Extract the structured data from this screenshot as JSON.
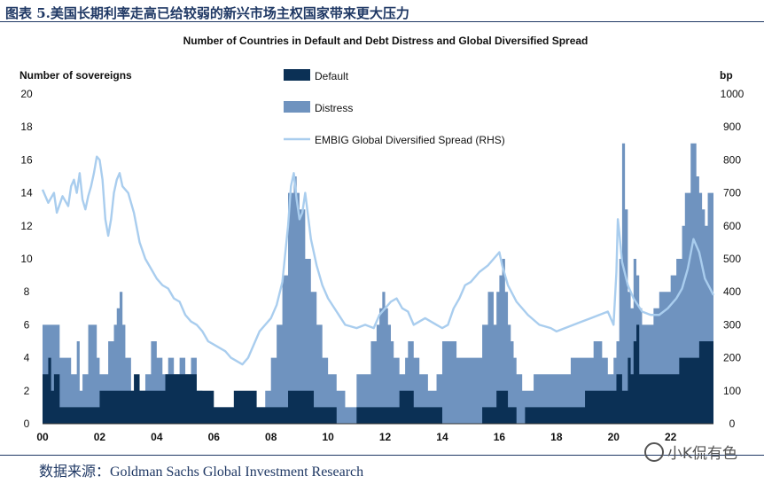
{
  "caption": "图表 5.美国长期利率走高已给较弱的新兴市场主权国家带来更大压力",
  "source": "数据来源：Goldman Sachs Global Investment Research",
  "watermark": "小K侃有色",
  "colors": {
    "default": "#0b3055",
    "distress": "#6f93bf",
    "spread": "#a9cdee",
    "frame": "#1f3864"
  },
  "chart_data": {
    "type": "bar",
    "title": "Number of Countries in Default and Debt Distress and Global Diversified Spread",
    "ylabel": "Number of sovereigns",
    "y2label": "bp",
    "ylim": [
      0,
      20
    ],
    "y2lim": [
      0,
      1000
    ],
    "yticks": [
      "0",
      "2",
      "4",
      "6",
      "8",
      "10",
      "12",
      "14",
      "16",
      "18",
      "20"
    ],
    "y2ticks": [
      "0",
      "100",
      "200",
      "300",
      "400",
      "500",
      "600",
      "700",
      "800",
      "900",
      "1000"
    ],
    "xlim": [
      2000,
      2023.5
    ],
    "xticks": [
      {
        "label": "00",
        "x": 2000
      },
      {
        "label": "02",
        "x": 2002
      },
      {
        "label": "04",
        "x": 2004
      },
      {
        "label": "06",
        "x": 2006
      },
      {
        "label": "08",
        "x": 2008
      },
      {
        "label": "10",
        "x": 2010
      },
      {
        "label": "12",
        "x": 2012
      },
      {
        "label": "14",
        "x": 2014
      },
      {
        "label": "16",
        "x": 2016
      },
      {
        "label": "18",
        "x": 2018
      },
      {
        "label": "20",
        "x": 2020
      },
      {
        "label": "22",
        "x": 2022
      }
    ],
    "legend": [
      "Default",
      "Distress",
      "EMBIG Global Diversified Spread (RHS)"
    ],
    "series": [
      {
        "name": "Default",
        "type": "step",
        "x": [
          2000.0,
          2000.2,
          2000.3,
          2000.4,
          2000.6,
          2001.5,
          2001.9,
          2002.0,
          2003.0,
          2003.2,
          2003.4,
          2004.2,
          2004.3,
          2005.3,
          2005.4,
          2005.5,
          2006.0,
          2006.5,
          2006.7,
          2007.5,
          2008.0,
          2008.6,
          2009.2,
          2009.5,
          2010.3,
          2011.0,
          2011.5,
          2011.8,
          2012.0,
          2012.5,
          2012.8,
          2013.0,
          2013.2,
          2014.0,
          2014.2,
          2015.0,
          2015.4,
          2015.7,
          2015.9,
          2016.2,
          2016.3,
          2016.6,
          2016.9,
          2017.2,
          2018.0,
          2019.0,
          2019.8,
          2020.1,
          2020.3,
          2020.5,
          2020.6,
          2020.7,
          2020.8,
          2020.9,
          2021.0,
          2021.3,
          2022.3,
          2022.5,
          2023.0,
          2023.5
        ],
        "values": [
          3,
          4,
          2,
          3,
          1,
          1,
          1,
          2,
          2,
          3,
          2,
          2,
          3,
          3,
          2,
          2,
          1,
          1,
          2,
          1,
          1,
          2,
          2,
          1,
          0,
          1,
          1,
          1,
          1,
          2,
          2,
          1,
          1,
          0,
          0,
          0,
          1,
          1,
          2,
          2,
          1,
          0,
          1,
          1,
          1,
          2,
          2,
          3,
          2,
          4,
          3,
          5,
          6,
          3,
          3,
          3,
          4,
          4,
          5,
          5
        ]
      },
      {
        "name": "Distress",
        "type": "step",
        "x": [
          2000.0,
          2000.6,
          2001.0,
          2001.2,
          2001.3,
          2001.4,
          2001.6,
          2001.9,
          2002.0,
          2002.3,
          2002.5,
          2002.6,
          2002.7,
          2002.8,
          2002.9,
          2003.1,
          2003.4,
          2003.6,
          2003.8,
          2004.0,
          2004.2,
          2004.4,
          2004.6,
          2004.8,
          2005.0,
          2005.2,
          2005.4,
          2005.6,
          2005.8,
          2006.0,
          2006.4,
          2006.6,
          2007.0,
          2007.5,
          2007.8,
          2008.0,
          2008.2,
          2008.4,
          2008.6,
          2008.8,
          2008.9,
          2009.0,
          2009.2,
          2009.4,
          2009.6,
          2009.8,
          2010.0,
          2010.3,
          2010.6,
          2011.0,
          2011.5,
          2011.7,
          2011.8,
          2011.9,
          2012.0,
          2012.1,
          2012.2,
          2012.3,
          2012.5,
          2012.7,
          2012.8,
          2013.0,
          2013.2,
          2013.5,
          2013.6,
          2013.8,
          2014.0,
          2014.3,
          2014.5,
          2015.0,
          2015.4,
          2015.6,
          2015.8,
          2015.9,
          2016.0,
          2016.1,
          2016.2,
          2016.3,
          2016.4,
          2016.5,
          2016.6,
          2016.8,
          2017.2,
          2017.5,
          2018.0,
          2018.5,
          2019.0,
          2019.3,
          2019.6,
          2019.8,
          2020.0,
          2020.1,
          2020.2,
          2020.3,
          2020.4,
          2020.5,
          2020.6,
          2020.7,
          2020.8,
          2020.9,
          2021.0,
          2021.2,
          2021.4,
          2021.6,
          2021.8,
          2022.0,
          2022.2,
          2022.4,
          2022.5,
          2022.7,
          2022.9,
          2023.0,
          2023.1,
          2023.2,
          2023.3,
          2023.5
        ],
        "values": [
          6,
          4,
          3,
          5,
          2,
          3,
          6,
          4,
          3,
          5,
          6,
          7,
          8,
          6,
          4,
          2,
          2,
          3,
          5,
          4,
          3,
          4,
          3,
          4,
          3,
          4,
          2,
          1,
          1,
          1,
          1,
          1,
          1,
          1,
          2,
          4,
          6,
          9,
          14,
          15,
          14,
          13,
          10,
          8,
          6,
          4,
          3,
          2,
          1,
          3,
          5,
          6,
          7,
          8,
          7,
          6,
          5,
          4,
          3,
          4,
          5,
          4,
          3,
          2,
          2,
          3,
          5,
          5,
          4,
          4,
          6,
          8,
          6,
          8,
          9,
          10,
          8,
          6,
          5,
          4,
          3,
          2,
          3,
          3,
          3,
          4,
          4,
          5,
          4,
          3,
          4,
          5,
          10,
          17,
          13,
          8,
          7,
          10,
          9,
          7,
          6,
          6,
          7,
          8,
          8,
          9,
          10,
          12,
          14,
          17,
          15,
          14,
          13,
          12,
          14,
          14
        ]
      },
      {
        "name": "EMBIG Global Diversified Spread (RHS)",
        "type": "line",
        "x": [
          2000.0,
          2000.2,
          2000.4,
          2000.5,
          2000.7,
          2000.9,
          2001.0,
          2001.1,
          2001.2,
          2001.3,
          2001.4,
          2001.5,
          2001.6,
          2001.7,
          2001.8,
          2001.9,
          2002.0,
          2002.1,
          2002.2,
          2002.3,
          2002.4,
          2002.5,
          2002.6,
          2002.7,
          2002.8,
          2003.0,
          2003.2,
          2003.4,
          2003.6,
          2003.8,
          2004.0,
          2004.2,
          2004.4,
          2004.6,
          2004.8,
          2005.0,
          2005.2,
          2005.4,
          2005.6,
          2005.8,
          2006.0,
          2006.2,
          2006.4,
          2006.6,
          2006.8,
          2007.0,
          2007.2,
          2007.4,
          2007.6,
          2007.8,
          2008.0,
          2008.2,
          2008.4,
          2008.6,
          2008.7,
          2008.8,
          2008.9,
          2009.0,
          2009.1,
          2009.2,
          2009.4,
          2009.6,
          2009.8,
          2010.0,
          2010.3,
          2010.6,
          2011.0,
          2011.3,
          2011.6,
          2011.8,
          2012.0,
          2012.2,
          2012.4,
          2012.6,
          2012.8,
          2013.0,
          2013.2,
          2013.4,
          2013.6,
          2013.8,
          2014.0,
          2014.2,
          2014.4,
          2014.6,
          2014.8,
          2015.0,
          2015.3,
          2015.6,
          2015.8,
          2016.0,
          2016.1,
          2016.3,
          2016.6,
          2017.0,
          2017.4,
          2017.8,
          2018.0,
          2018.3,
          2018.6,
          2018.9,
          2019.2,
          2019.5,
          2019.8,
          2020.0,
          2020.1,
          2020.15,
          2020.2,
          2020.3,
          2020.5,
          2020.7,
          2021.0,
          2021.3,
          2021.6,
          2021.9,
          2022.0,
          2022.2,
          2022.4,
          2022.6,
          2022.8,
          2023.0,
          2023.2,
          2023.5
        ],
        "values": [
          710,
          670,
          700,
          640,
          690,
          660,
          720,
          740,
          700,
          760,
          680,
          650,
          690,
          720,
          760,
          810,
          800,
          740,
          620,
          570,
          620,
          700,
          740,
          760,
          720,
          700,
          640,
          550,
          500,
          470,
          440,
          420,
          410,
          380,
          370,
          330,
          310,
          300,
          280,
          250,
          240,
          230,
          220,
          200,
          190,
          180,
          200,
          240,
          280,
          300,
          320,
          360,
          430,
          600,
          720,
          760,
          680,
          620,
          640,
          700,
          560,
          480,
          420,
          380,
          340,
          300,
          290,
          300,
          290,
          330,
          350,
          370,
          380,
          350,
          340,
          300,
          310,
          320,
          310,
          300,
          290,
          300,
          350,
          380,
          420,
          430,
          460,
          480,
          500,
          520,
          480,
          420,
          370,
          330,
          300,
          290,
          280,
          290,
          300,
          310,
          320,
          330,
          340,
          300,
          460,
          620,
          580,
          490,
          420,
          380,
          340,
          330,
          330,
          350,
          360,
          380,
          410,
          470,
          560,
          520,
          440,
          390
        ]
      }
    ]
  }
}
